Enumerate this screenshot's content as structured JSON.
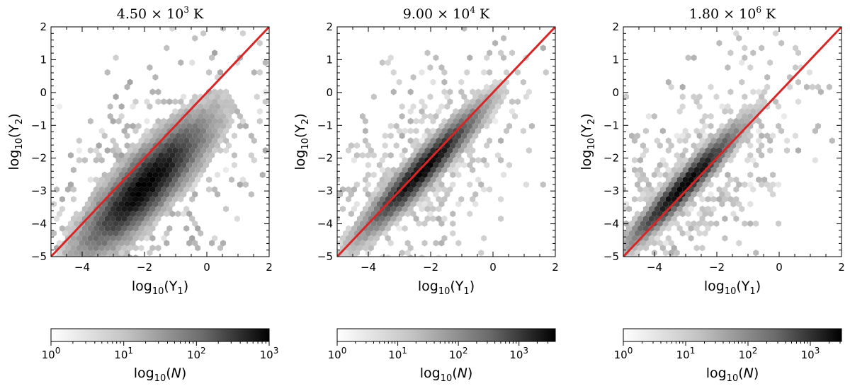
{
  "chart_data": [
    {
      "type": "hexbin",
      "title": {
        "mantissa": "4.50",
        "times": "×",
        "base": "10",
        "exp": "3",
        "unit": "K"
      },
      "xlabel": {
        "prefix": "log",
        "sub": "10",
        "open": "(Y",
        "var_sub": "1",
        "close": ")"
      },
      "ylabel": {
        "prefix": "log",
        "sub": "10",
        "open": "(Y",
        "var_sub": "2",
        "close": ")"
      },
      "xlim": [
        -5,
        2
      ],
      "ylim": [
        -5,
        2
      ],
      "xticks": [
        -4,
        -2,
        0,
        2
      ],
      "xtick_labels": [
        "−4",
        "−2",
        "0",
        "2"
      ],
      "yticks": [
        -5,
        -4,
        -3,
        -2,
        -1,
        0,
        1,
        2
      ],
      "ytick_labels": [
        "−5",
        "−4",
        "−3",
        "−2",
        "−1",
        "0",
        "1",
        "2"
      ],
      "reference_line": {
        "x": [
          -5,
          2
        ],
        "y": [
          -5,
          2
        ],
        "color": "#d62728"
      },
      "density": {
        "center": [
          -2.2,
          -2.6
        ],
        "spread_along": 1.9,
        "spread_across": 0.55,
        "offset": -0.45,
        "cmax_log": 3
      },
      "colorbar": {
        "label": {
          "prefix": "log",
          "sub": "10",
          "open": "(",
          "var": "N",
          "close": ")"
        },
        "range_log": [
          0,
          3
        ],
        "ticks": [
          0,
          1,
          2,
          3
        ],
        "tick_labels": [
          {
            "base": "10",
            "exp": "0"
          },
          {
            "base": "10",
            "exp": "1"
          },
          {
            "base": "10",
            "exp": "2"
          },
          {
            "base": "10",
            "exp": "3"
          }
        ]
      }
    },
    {
      "type": "hexbin",
      "title": {
        "mantissa": "9.00",
        "times": "×",
        "base": "10",
        "exp": "4",
        "unit": "K"
      },
      "xlabel": {
        "prefix": "log",
        "sub": "10",
        "open": "(Y",
        "var_sub": "1",
        "close": ")"
      },
      "ylabel": {
        "prefix": "log",
        "sub": "10",
        "open": "(Y",
        "var_sub": "2",
        "close": ")"
      },
      "xlim": [
        -5,
        2
      ],
      "ylim": [
        -5,
        2
      ],
      "xticks": [
        -4,
        -2,
        0,
        2
      ],
      "xtick_labels": [
        "−4",
        "−2",
        "0",
        "2"
      ],
      "yticks": [
        -5,
        -4,
        -3,
        -2,
        -1,
        0,
        1,
        2
      ],
      "ytick_labels": [
        "−5",
        "−4",
        "−3",
        "−2",
        "−1",
        "0",
        "1",
        "2"
      ],
      "reference_line": {
        "x": [
          -5,
          2
        ],
        "y": [
          -5,
          2
        ],
        "color": "#d62728"
      },
      "density": {
        "center": [
          -2.3,
          -2.35
        ],
        "spread_along": 1.8,
        "spread_across": 0.3,
        "offset": -0.05,
        "cmax_log": 3.6
      },
      "colorbar": {
        "label": {
          "prefix": "log",
          "sub": "10",
          "open": "(",
          "var": "N",
          "close": ")"
        },
        "range_log": [
          0,
          3.6
        ],
        "ticks": [
          0,
          1,
          2,
          3
        ],
        "tick_labels": [
          {
            "base": "10",
            "exp": "0"
          },
          {
            "base": "10",
            "exp": "1"
          },
          {
            "base": "10",
            "exp": "2"
          },
          {
            "base": "10",
            "exp": "3"
          }
        ]
      }
    },
    {
      "type": "hexbin",
      "title": {
        "mantissa": "1.80",
        "times": "×",
        "base": "10",
        "exp": "6",
        "unit": "K"
      },
      "xlabel": {
        "prefix": "log",
        "sub": "10",
        "open": "(Y",
        "var_sub": "1",
        "close": ")"
      },
      "ylabel": {
        "prefix": "log",
        "sub": "10",
        "open": "(Y",
        "var_sub": "2",
        "close": ")"
      },
      "xlim": [
        -5,
        2
      ],
      "ylim": [
        -5,
        2
      ],
      "xticks": [
        -4,
        -2,
        0,
        2
      ],
      "xtick_labels": [
        "−4",
        "−2",
        "0",
        "2"
      ],
      "yticks": [
        -5,
        -4,
        -3,
        -2,
        -1,
        0,
        1,
        2
      ],
      "ytick_labels": [
        "−5",
        "−4",
        "−3",
        "−2",
        "−1",
        "0",
        "1",
        "2"
      ],
      "reference_line": {
        "x": [
          -5,
          2
        ],
        "y": [
          -5,
          2
        ],
        "color": "#d62728"
      },
      "density": {
        "center": [
          -3.0,
          -2.9
        ],
        "spread_along": 1.7,
        "spread_across": 0.25,
        "offset": 0.1,
        "cmax_log": 3.5
      },
      "colorbar": {
        "label": {
          "prefix": "log",
          "sub": "10",
          "open": "(",
          "var": "N",
          "close": ")"
        },
        "range_log": [
          0,
          3.5
        ],
        "ticks": [
          0,
          1,
          2,
          3
        ],
        "tick_labels": [
          {
            "base": "10",
            "exp": "0"
          },
          {
            "base": "10",
            "exp": "1"
          },
          {
            "base": "10",
            "exp": "2"
          },
          {
            "base": "10",
            "exp": "3"
          }
        ]
      }
    }
  ]
}
